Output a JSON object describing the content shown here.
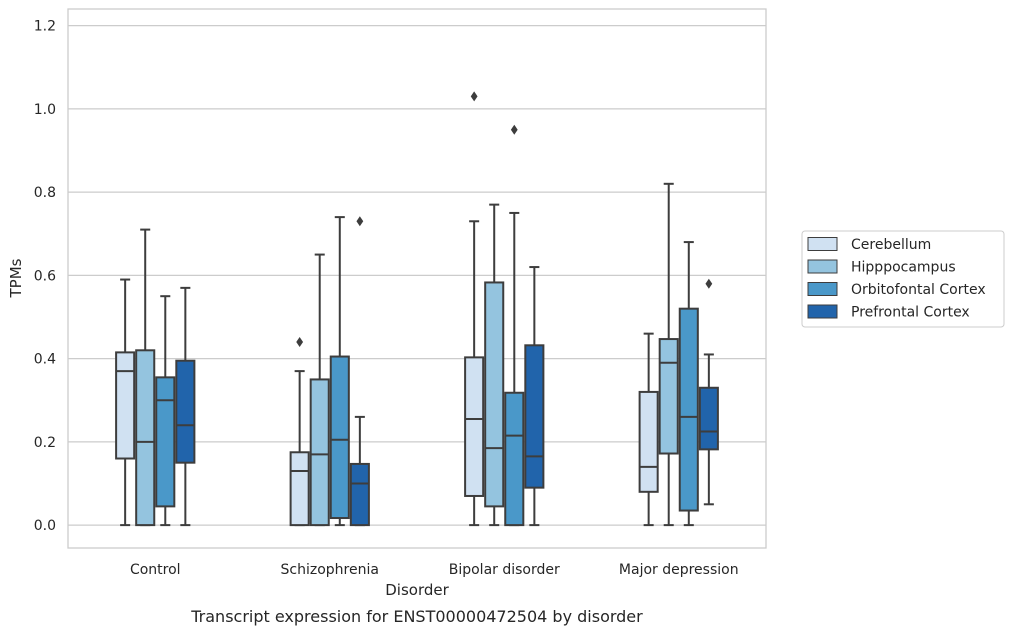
{
  "caption": "Transcript expression for ENST00000472504 by disorder",
  "chart_data": {
    "type": "box",
    "xlabel": "Disorder",
    "ylabel": "TPMs",
    "ylim": [
      -0.055,
      1.24
    ],
    "yticks": [
      0.0,
      0.2,
      0.4,
      0.6,
      0.8,
      1.0,
      1.2
    ],
    "ytick_labels": [
      "0.0",
      "0.2",
      "0.4",
      "0.6",
      "0.8",
      "1.0",
      "1.2"
    ],
    "grid": true,
    "legend_position": "right",
    "categories": [
      "Control",
      "Schizophrenia",
      "Bipolar disorder",
      "Major depression"
    ],
    "series": [
      {
        "name": "Cerebellum",
        "color": "#d0e1f2",
        "boxes": [
          {
            "whislo": 0.0,
            "q1": 0.16,
            "med": 0.37,
            "q3": 0.415,
            "whishi": 0.59,
            "fliers": []
          },
          {
            "whislo": 0.0,
            "q1": 0.0,
            "med": 0.13,
            "q3": 0.175,
            "whishi": 0.37,
            "fliers": [
              0.44
            ]
          },
          {
            "whislo": 0.0,
            "q1": 0.07,
            "med": 0.255,
            "q3": 0.403,
            "whishi": 0.73,
            "fliers": [
              1.03
            ]
          },
          {
            "whislo": 0.0,
            "q1": 0.08,
            "med": 0.14,
            "q3": 0.32,
            "whishi": 0.46,
            "fliers": []
          }
        ]
      },
      {
        "name": "Hipppocampus",
        "color": "#94c4df",
        "boxes": [
          {
            "whislo": 0.0,
            "q1": 0.0,
            "med": 0.2,
            "q3": 0.42,
            "whishi": 0.71,
            "fliers": []
          },
          {
            "whislo": 0.0,
            "q1": 0.0,
            "med": 0.17,
            "q3": 0.35,
            "whishi": 0.65,
            "fliers": []
          },
          {
            "whislo": 0.0,
            "q1": 0.045,
            "med": 0.185,
            "q3": 0.583,
            "whishi": 0.77,
            "fliers": []
          },
          {
            "whislo": 0.0,
            "q1": 0.172,
            "med": 0.39,
            "q3": 0.447,
            "whishi": 0.82,
            "fliers": []
          }
        ]
      },
      {
        "name": "Orbitofontal Cortex",
        "color": "#4a98c9",
        "boxes": [
          {
            "whislo": 0.0,
            "q1": 0.045,
            "med": 0.3,
            "q3": 0.355,
            "whishi": 0.55,
            "fliers": []
          },
          {
            "whislo": 0.0,
            "q1": 0.017,
            "med": 0.205,
            "q3": 0.405,
            "whishi": 0.74,
            "fliers": []
          },
          {
            "whislo": 0.0,
            "q1": 0.0,
            "med": 0.215,
            "q3": 0.318,
            "whishi": 0.75,
            "fliers": [
              0.95
            ]
          },
          {
            "whislo": 0.0,
            "q1": 0.035,
            "med": 0.26,
            "q3": 0.52,
            "whishi": 0.68,
            "fliers": []
          }
        ]
      },
      {
        "name": "Prefrontal Cortex",
        "color": "#2164ab",
        "boxes": [
          {
            "whislo": 0.0,
            "q1": 0.15,
            "med": 0.24,
            "q3": 0.395,
            "whishi": 0.57,
            "fliers": []
          },
          {
            "whislo": 0.0,
            "q1": 0.0,
            "med": 0.1,
            "q3": 0.147,
            "whishi": 0.26,
            "fliers": [
              0.73
            ]
          },
          {
            "whislo": 0.0,
            "q1": 0.09,
            "med": 0.165,
            "q3": 0.432,
            "whishi": 0.62,
            "fliers": []
          },
          {
            "whislo": 0.05,
            "q1": 0.182,
            "med": 0.225,
            "q3": 0.33,
            "whishi": 0.41,
            "fliers": [
              0.58
            ]
          }
        ]
      }
    ]
  }
}
